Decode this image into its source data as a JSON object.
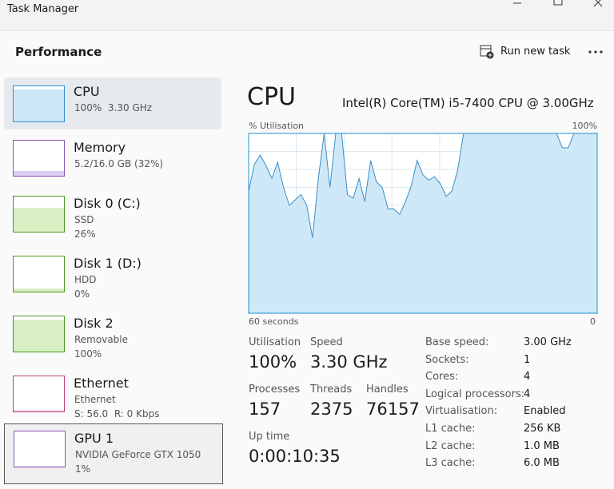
{
  "window": {
    "title": "Task Manager"
  },
  "header": {
    "title": "Performance",
    "run_new_task": "Run new task"
  },
  "sidebar": [
    {
      "name": "CPU",
      "lines": [
        "100%  3.30 GHz"
      ]
    },
    {
      "name": "Memory",
      "lines": [
        "5.2/16.0 GB (32%)"
      ]
    },
    {
      "name": "Disk 0 (C:)",
      "lines": [
        "SSD",
        "26%"
      ]
    },
    {
      "name": "Disk 1 (D:)",
      "lines": [
        "HDD",
        "0%"
      ]
    },
    {
      "name": "Disk 2",
      "lines": [
        "Removable",
        "100%"
      ]
    },
    {
      "name": "Ethernet",
      "lines": [
        "Ethernet",
        "S: 56.0  R: 0 Kbps"
      ]
    },
    {
      "name": "GPU 1",
      "lines": [
        "NVIDIA GeForce GTX 1050",
        "1%"
      ]
    }
  ],
  "panel": {
    "title": "CPU",
    "model": "Intel(R) Core(TM) i5-7400 CPU @ 3.00GHz",
    "stats": [
      {
        "label": "Utilisation",
        "value": "100%"
      },
      {
        "label": "Speed",
        "value": "3.30 GHz"
      },
      {
        "label": "Processes",
        "value": "157"
      },
      {
        "label": "Threads",
        "value": "2375"
      },
      {
        "label": "Handles",
        "value": "76157"
      },
      {
        "label": "Up time",
        "value": "0:00:10:35"
      }
    ],
    "specs": [
      {
        "label": "Base speed:",
        "value": "3.00 GHz"
      },
      {
        "label": "Sockets:",
        "value": "1"
      },
      {
        "label": "Cores:",
        "value": "4"
      },
      {
        "label": "Logical processors:",
        "value": "4"
      },
      {
        "label": "Virtualisation:",
        "value": "Enabled"
      },
      {
        "label": "L1 cache:",
        "value": "256 KB"
      },
      {
        "label": "L2 cache:",
        "value": "1.0 MB"
      },
      {
        "label": "L3 cache:",
        "value": "6.0 MB"
      }
    ]
  },
  "chart_data": {
    "type": "area",
    "ylabel": "% Utilisation",
    "color": "#3a8fc8",
    "x": [
      60,
      59,
      58,
      57,
      56,
      55,
      54,
      53,
      52,
      51,
      50,
      49,
      48,
      47,
      46,
      45,
      44,
      43,
      42,
      41,
      40,
      39,
      38,
      37,
      36,
      35,
      34,
      33,
      32,
      31,
      30,
      29,
      28,
      27,
      26,
      25,
      24,
      23,
      22,
      21,
      20,
      19,
      18,
      17,
      16,
      15,
      14,
      13,
      12,
      11,
      10,
      9,
      8,
      7,
      6,
      5,
      4,
      3,
      2,
      1,
      0
    ],
    "values": [
      68,
      83,
      88,
      82,
      75,
      84,
      70,
      60,
      63,
      66,
      60,
      42,
      75,
      100,
      70,
      100,
      100,
      66,
      64,
      75,
      62,
      85,
      73,
      70,
      58,
      58,
      55,
      62,
      71,
      85,
      77,
      74,
      76,
      72,
      65,
      68,
      80,
      100,
      100,
      100,
      100,
      100,
      100,
      100,
      100,
      100,
      100,
      100,
      100,
      100,
      100,
      100,
      100,
      100,
      92,
      92,
      100,
      100,
      100,
      100,
      100
    ],
    "xlim": [
      60,
      0
    ],
    "ylim": [
      0,
      100
    ],
    "xticks": [
      {
        "value": 60,
        "label": "60 seconds"
      },
      0
    ],
    "yticks": [
      {
        "value": 100,
        "label": "100%"
      }
    ],
    "grid": true
  }
}
